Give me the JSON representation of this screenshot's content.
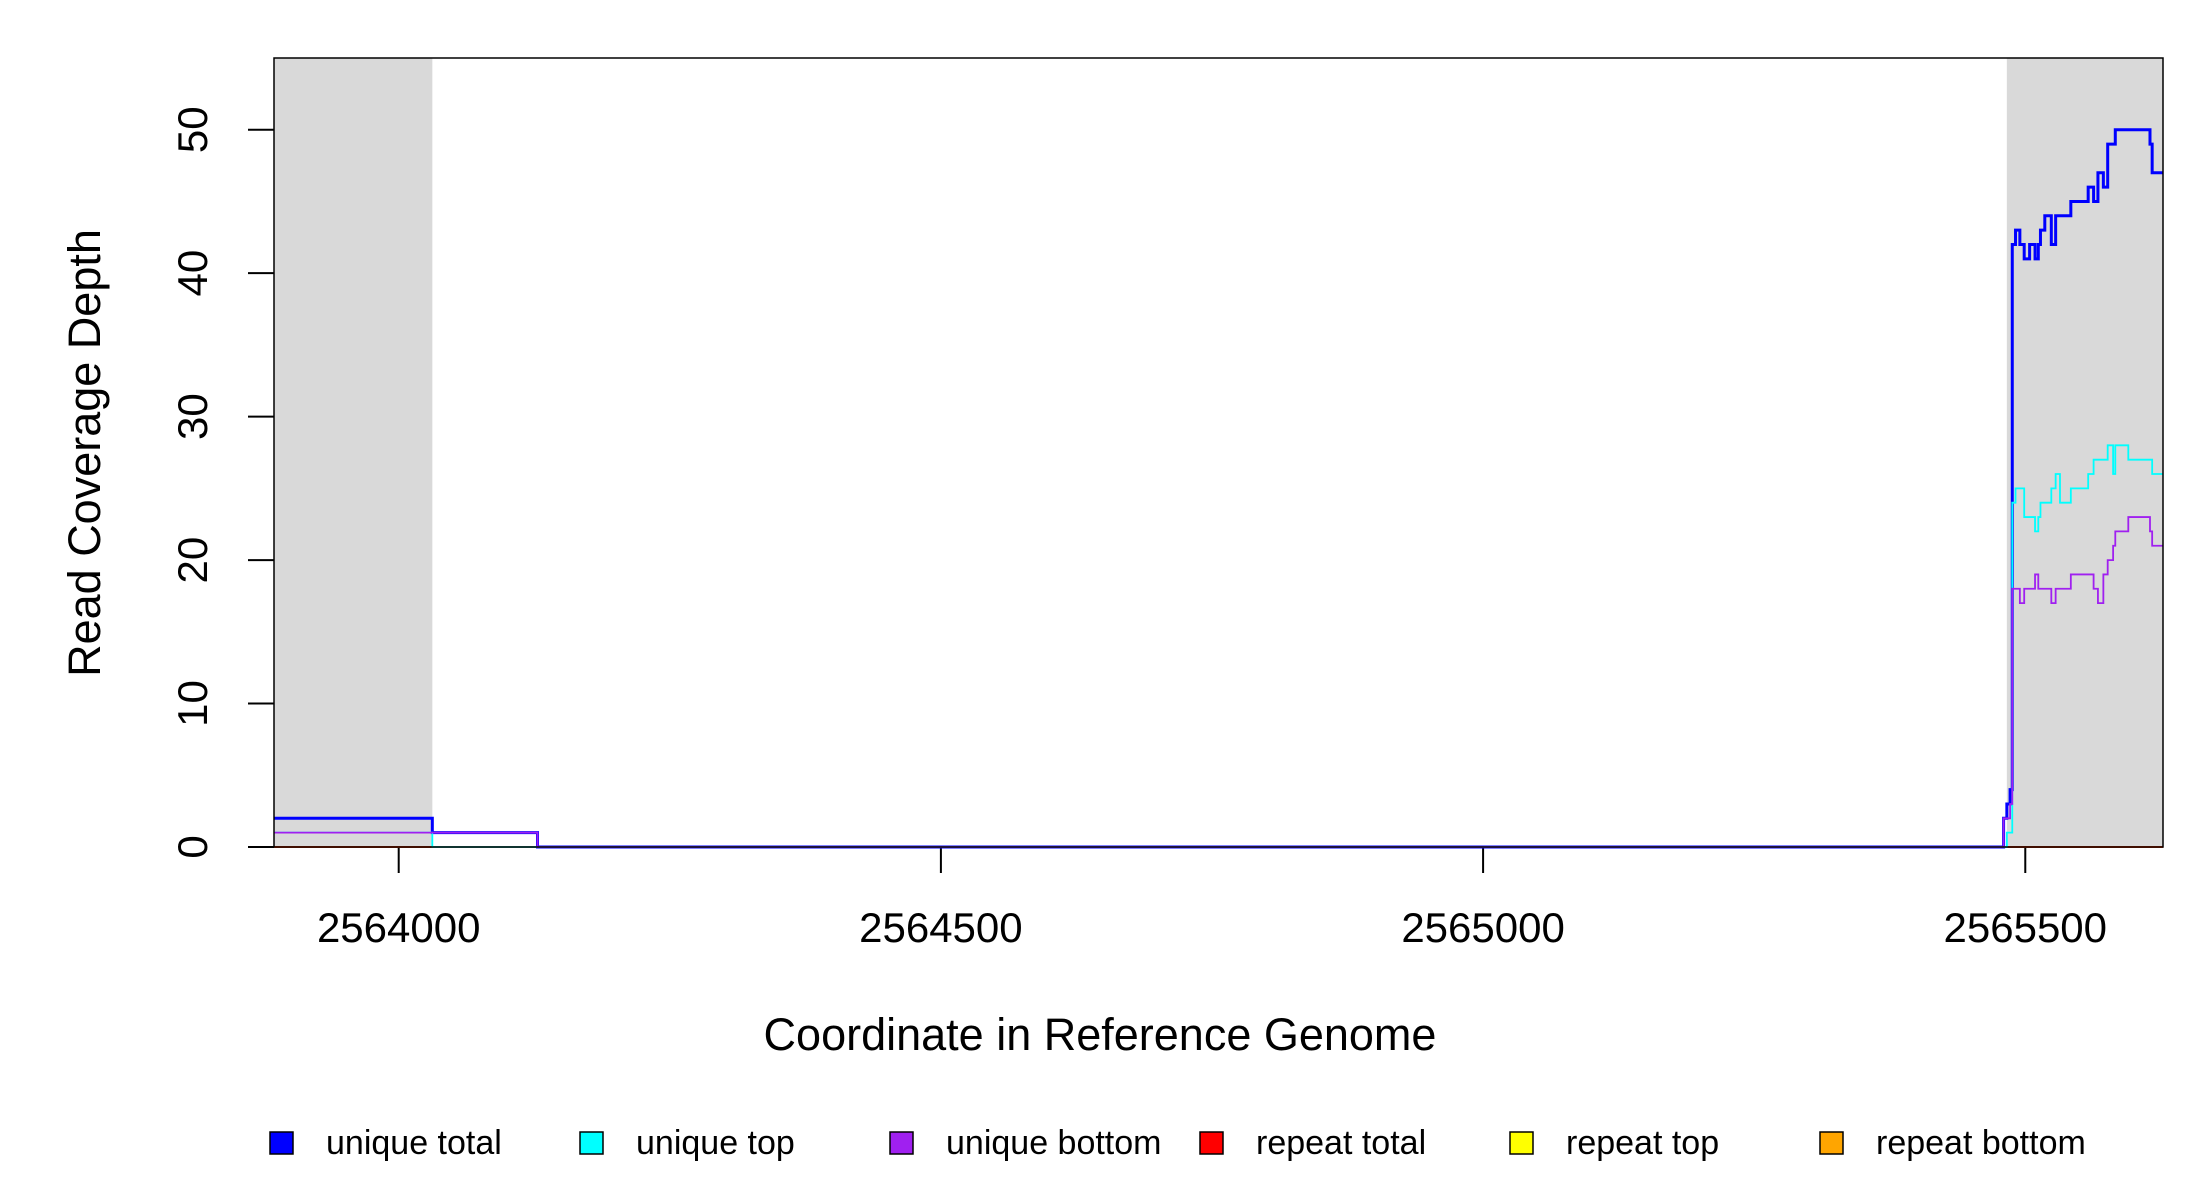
{
  "chart_data": {
    "type": "step",
    "xlabel": "Coordinate in Reference Genome",
    "ylabel": "Read Coverage Depth",
    "xlim": [
      2563885,
      2565627
    ],
    "xticks": [
      2564000,
      2564500,
      2565000,
      2565500
    ],
    "ylim": [
      0,
      55
    ],
    "yticks": [
      0,
      10,
      20,
      30,
      40,
      50
    ],
    "grid": false,
    "legend": "bottom",
    "shaded_regions": [
      [
        2563885,
        2564031
      ],
      [
        2565483,
        2565627
      ]
    ],
    "shade_color": "#d9d9d9",
    "x": [
      2563885,
      2564031,
      2564128,
      2565480,
      2565483,
      2565486,
      2565488,
      2565491,
      2565495,
      2565499,
      2565504,
      2565509,
      2565512,
      2565514,
      2565518,
      2565524,
      2565528,
      2565532,
      2565536,
      2565542,
      2565558,
      2565563,
      2565567,
      2565572,
      2565576,
      2565581,
      2565583,
      2565595,
      2565615,
      2565617,
      2565627
    ],
    "series": [
      {
        "name": "unique total",
        "color": "#0000ff",
        "values": [
          2,
          1,
          0,
          2,
          3,
          4,
          42,
          43,
          42,
          41,
          42,
          41,
          42,
          43,
          44,
          42,
          44,
          44,
          44,
          45,
          46,
          45,
          47,
          46,
          49,
          49,
          50,
          50,
          49,
          47,
          47
        ]
      },
      {
        "name": "unique top",
        "color": "#00ffff",
        "values": [
          1,
          0,
          0,
          0,
          1,
          1,
          24,
          25,
          25,
          23,
          23,
          22,
          23,
          24,
          24,
          25,
          26,
          24,
          24,
          25,
          26,
          27,
          27,
          27,
          28,
          26,
          28,
          27,
          27,
          26,
          26
        ]
      },
      {
        "name": "unique bottom",
        "color": "#a020f0",
        "values": [
          1,
          1,
          0,
          2,
          2,
          3,
          18,
          18,
          17,
          18,
          18,
          19,
          18,
          18,
          18,
          17,
          18,
          18,
          18,
          19,
          19,
          18,
          17,
          19,
          20,
          21,
          22,
          23,
          22,
          21,
          21
        ]
      },
      {
        "name": "repeat total",
        "color": "#ff0000",
        "values": [
          0,
          0,
          0,
          0,
          0,
          0,
          0,
          0,
          0,
          0,
          0,
          0,
          0,
          0,
          0,
          0,
          0,
          0,
          0,
          0,
          0,
          0,
          0,
          0,
          0,
          0,
          0,
          0,
          0,
          0,
          0
        ]
      },
      {
        "name": "repeat top",
        "color": "#ffff00",
        "values": [
          0,
          0,
          0,
          0,
          0,
          0,
          0,
          0,
          0,
          0,
          0,
          0,
          0,
          0,
          0,
          0,
          0,
          0,
          0,
          0,
          0,
          0,
          0,
          0,
          0,
          0,
          0,
          0,
          0,
          0,
          0
        ]
      },
      {
        "name": "repeat bottom",
        "color": "#ffa500",
        "values": [
          0,
          0,
          0,
          0,
          0,
          0,
          0,
          0,
          0,
          0,
          0,
          0,
          0,
          0,
          0,
          0,
          0,
          0,
          0,
          0,
          0,
          0,
          0,
          0,
          0,
          0,
          0,
          0,
          0,
          0,
          0
        ]
      }
    ]
  }
}
